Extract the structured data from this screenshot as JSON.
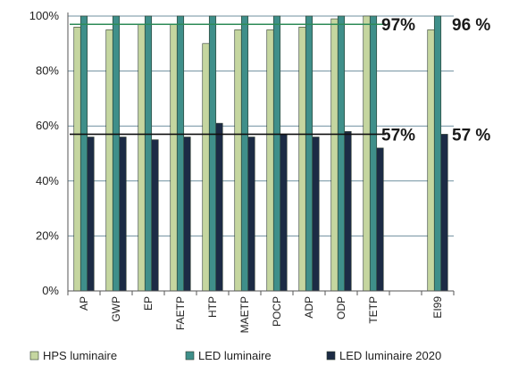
{
  "chart_data": {
    "type": "bar",
    "categories": [
      "AP",
      "GWP",
      "EP",
      "FAETP",
      "HTP",
      "MAETP",
      "POCP",
      "ADP",
      "ODP",
      "TETP",
      "",
      "EI99"
    ],
    "series": [
      {
        "name": "HPS luminaire",
        "color": "#c5d6a0",
        "values": [
          96,
          95,
          97,
          97,
          90,
          95,
          95,
          96,
          99,
          100,
          null,
          95
        ]
      },
      {
        "name": "LED luminaire",
        "color": "#3f8f8a",
        "values": [
          100,
          100,
          100,
          100,
          100,
          100,
          100,
          100,
          100,
          100,
          null,
          100
        ]
      },
      {
        "name": "LED luminaire 2020",
        "color": "#1c2b45",
        "values": [
          56,
          56,
          55,
          56,
          61,
          56,
          57,
          56,
          58,
          52,
          null,
          57
        ]
      }
    ],
    "ylim": [
      0,
      100
    ],
    "yticks": [
      "0%",
      "20%",
      "40%",
      "60%",
      "80%",
      "100%"
    ],
    "grid": true,
    "legend_position": "bottom",
    "reference_lines": [
      {
        "value": 97,
        "color": "#2e8b57",
        "labels": [
          "97%",
          "96 %"
        ]
      },
      {
        "value": 57,
        "color": "#111111",
        "labels": [
          "57%",
          "57 %"
        ]
      }
    ]
  }
}
